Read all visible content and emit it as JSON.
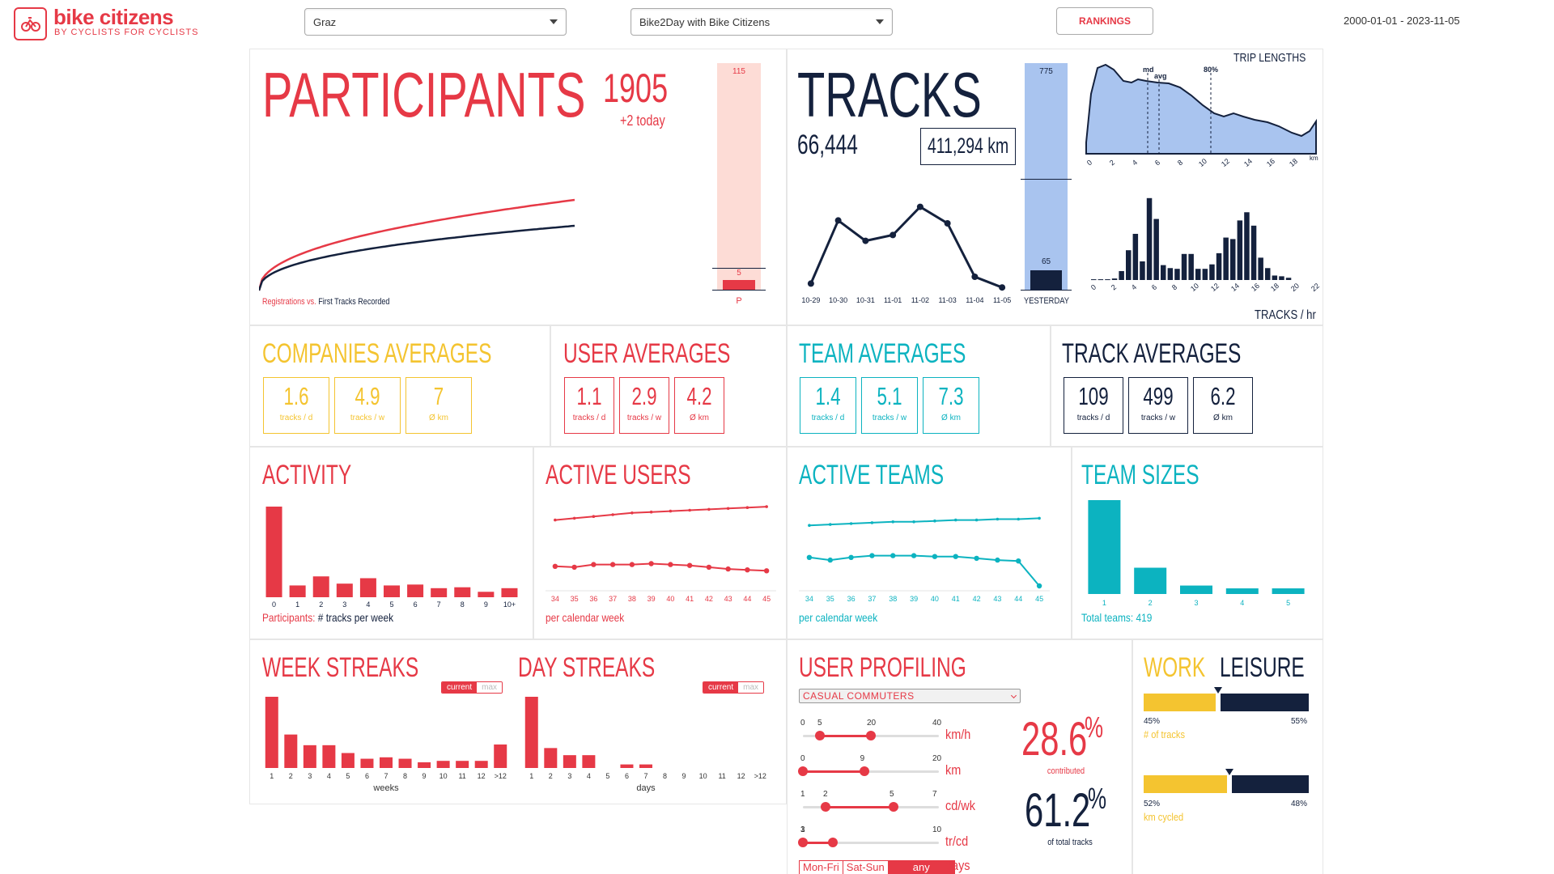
{
  "header": {
    "logo_text": "bike citizens",
    "logo_sub": "BY CYCLISTS FOR CYCLISTS",
    "city_select": "Graz",
    "campaign_select": "Bike2Day with Bike Citizens",
    "rankings_label": "RANKINGS",
    "date_range": "2000-01-01 - 2023-11-05"
  },
  "participants": {
    "title": "PARTICIPANTS",
    "count": "1905",
    "today": "+2 today",
    "legend_red": "Registrations vs.",
    "legend_navy": "First Tracks Recorded",
    "bar_top": "115",
    "bar_bottom": "5",
    "bar_label": "P"
  },
  "tracks": {
    "title": "TRACKS",
    "count": "66,444",
    "km": "411,294 km",
    "bar_top": "775",
    "bar_bottom": "65",
    "bar_label": "YESTERDAY",
    "days": [
      "10-29",
      "10-30",
      "10-31",
      "11-01",
      "11-02",
      "11-03",
      "11-04",
      "11-05"
    ],
    "day_values": [
      8,
      73,
      52,
      58,
      87,
      70,
      15,
      4
    ],
    "trip_title": "TRIP LENGTHS",
    "trip_md": "md",
    "trip_avg": "avg",
    "trip_80": "80%",
    "trip_ticks": [
      "0",
      "2",
      "4",
      "6",
      "8",
      "10",
      "12",
      "14",
      "16",
      "18"
    ],
    "trip_unit": "km",
    "hr_title": "TRACKS / hr",
    "hr_ticks": [
      "0",
      "2",
      "4",
      "6",
      "8",
      "10",
      "12",
      "14",
      "16",
      "18",
      "20",
      "22"
    ],
    "hr_values": [
      1,
      1,
      1,
      2,
      12,
      40,
      62,
      25,
      110,
      82,
      20,
      16,
      15,
      35,
      35,
      15,
      15,
      21,
      36,
      57,
      55,
      80,
      91,
      73,
      30,
      16,
      6,
      5,
      3
    ]
  },
  "companies": {
    "title": "COMPANIES AVERAGES",
    "boxes": [
      {
        "v": "1.6",
        "l": "tracks / d"
      },
      {
        "v": "4.9",
        "l": "tracks / w"
      },
      {
        "v": "7",
        "l": "Ø km"
      }
    ]
  },
  "users": {
    "title": "USER AVERAGES",
    "boxes": [
      {
        "v": "1.1",
        "l": "tracks / d"
      },
      {
        "v": "2.9",
        "l": "tracks / w"
      },
      {
        "v": "4.2",
        "l": "Ø km"
      }
    ]
  },
  "teams": {
    "title": "TEAM AVERAGES",
    "boxes": [
      {
        "v": "1.4",
        "l": "tracks / d"
      },
      {
        "v": "5.1",
        "l": "tracks / w"
      },
      {
        "v": "7.3",
        "l": "Ø km"
      }
    ]
  },
  "trackavg": {
    "title": "TRACK AVERAGES",
    "boxes": [
      {
        "v": "109",
        "l": "tracks / d"
      },
      {
        "v": "499",
        "l": "tracks / w"
      },
      {
        "v": "6.2",
        "l": "Ø km"
      }
    ]
  },
  "activity": {
    "title": "ACTIVITY",
    "cats": [
      "0",
      "1",
      "2",
      "3",
      "4",
      "5",
      "6",
      "7",
      "8",
      "9",
      "10+"
    ],
    "values": [
      100,
      13,
      23,
      15,
      21,
      13,
      14,
      10,
      11,
      6,
      10
    ],
    "caption_red": "Participants:",
    "caption_navy": "# tracks per week"
  },
  "active_users": {
    "title": "ACTIVE USERS",
    "weeks": [
      "34",
      "35",
      "36",
      "37",
      "38",
      "39",
      "40",
      "41",
      "42",
      "43",
      "44",
      "45"
    ],
    "caption": "per calendar week",
    "top_values": [
      84,
      86,
      88,
      90,
      92,
      93,
      94,
      95,
      96,
      97,
      98,
      99
    ],
    "bottom_values": [
      32,
      31,
      34,
      34,
      34,
      35,
      34,
      33,
      31,
      29,
      28,
      27
    ]
  },
  "active_teams": {
    "title": "ACTIVE TEAMS",
    "weeks": [
      "34",
      "35",
      "36",
      "37",
      "38",
      "39",
      "40",
      "41",
      "42",
      "43",
      "44",
      "45"
    ],
    "caption": "per calendar week",
    "top_values": [
      78,
      79,
      80,
      81,
      82,
      82,
      83,
      84,
      84,
      85,
      85,
      86
    ],
    "bottom_values": [
      42,
      39,
      42,
      44,
      44,
      44,
      43,
      43,
      41,
      39,
      38,
      10
    ]
  },
  "team_sizes": {
    "title": "TEAM SIZES",
    "cats": [
      "1",
      "2",
      "3",
      "4",
      "5"
    ],
    "values": [
      100,
      28,
      9,
      6,
      6
    ],
    "caption_teal": "Total teams:",
    "caption_val": "419"
  },
  "week_streaks": {
    "title": "WEEK STREAKS",
    "toggle_on": "current",
    "toggle_off": "max",
    "cats": [
      "1",
      "2",
      "3",
      "4",
      "5",
      "6",
      "7",
      "8",
      "9",
      "10",
      "11",
      "12",
      ">12"
    ],
    "values": [
      100,
      47,
      32,
      32,
      21,
      13,
      15,
      13,
      8,
      10,
      10,
      10,
      33
    ],
    "caption": "weeks"
  },
  "day_streaks": {
    "title": "DAY STREAKS",
    "toggle_on": "current",
    "toggle_off": "max",
    "cats": [
      "1",
      "2",
      "3",
      "4",
      "5",
      "6",
      "7",
      "8",
      "9",
      "10",
      "11",
      "12",
      ">12"
    ],
    "values": [
      100,
      28,
      18,
      18,
      0,
      5,
      5,
      0,
      0,
      0,
      0,
      0,
      0
    ],
    "caption": "days"
  },
  "profiling": {
    "title": "USER PROFILING",
    "select": "CASUAL COMMUTERS",
    "sliders": [
      {
        "min": "0",
        "a": "5",
        "b": "20",
        "max": "40",
        "unit": "km/h",
        "av": 5,
        "bv": 20,
        "lo": 0,
        "hi": 40
      },
      {
        "min": "0",
        "a": "",
        "b": "9",
        "max": "20",
        "unit": "km",
        "av": 0,
        "bv": 9,
        "lo": 0,
        "hi": 20
      },
      {
        "min": "1",
        "a": "2",
        "b": "5",
        "max": "7",
        "unit": "cd/wk",
        "av": 2,
        "bv": 5,
        "lo": 1,
        "hi": 7
      },
      {
        "min": "1",
        "a": "3",
        "b": "",
        "max": "10",
        "unit": "tr/cd",
        "av": 1,
        "bv": 3,
        "lo": 1,
        "hi": 10
      }
    ],
    "days": [
      "Mon-Fri",
      "Sat-Sun",
      "any"
    ],
    "days_label": "days",
    "pct1": "28.6",
    "pct1_label": "contributed",
    "pct2": "61.2",
    "pct2_label": "of total tracks",
    "pct_sign": "%"
  },
  "work_leisure": {
    "work": "WORK",
    "leisure": "LEISURE",
    "tracks_work": 45,
    "tracks_leisure": 55,
    "tracks_work_label": "45%",
    "tracks_leisure_label": "55%",
    "tracks_caption": "# of tracks",
    "km_work": 52,
    "km_leisure": 48,
    "km_work_label": "52%",
    "km_leisure_label": "48%",
    "km_caption": "km cycled"
  }
}
